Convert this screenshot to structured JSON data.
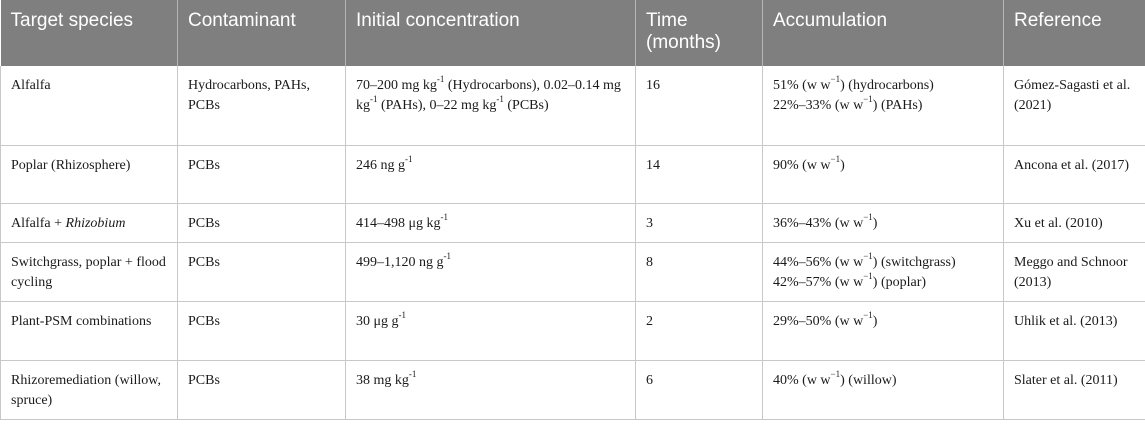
{
  "table": {
    "headers": [
      "Target species",
      "Contaminant",
      "Initial concentration",
      "Time (months)",
      "Accumulation",
      "Reference"
    ],
    "rows": [
      {
        "species": "Alfalfa",
        "contaminant": "Hydrocarbons, PAHs, PCBs",
        "concentration_a": "70–200 mg kg",
        "concentration_a_sup": "-1",
        "concentration_b": " (Hydrocarbons), 0.02–0.14 mg kg",
        "concentration_b_sup": "-1",
        "concentration_c": " (PAHs), 0–22 mg kg",
        "concentration_c_sup": "-1",
        "concentration_d": " (PCBs)",
        "time": "16",
        "accumulation_1a": "51% (w w",
        "accumulation_1_sup": "−1",
        "accumulation_1b": ") (hydrocarbons)",
        "accumulation_2a": "22%–33% (w w",
        "accumulation_2_sup": "−1",
        "accumulation_2b": ") (PAHs)",
        "reference": "Gómez-Sagasti et al. (2021)"
      },
      {
        "species": "Poplar (Rhizosphere)",
        "contaminant": "PCBs",
        "concentration": "246 ng g",
        "concentration_sup": "-1",
        "time": "14",
        "accumulation_a": "90% (w w",
        "accumulation_sup": "−1",
        "accumulation_b": ")",
        "reference": "Ancona et al. (2017)"
      },
      {
        "species_a": "Alfalfa + ",
        "species_b": "Rhizobium",
        "contaminant": "PCBs",
        "concentration": "414–498 μg kg",
        "concentration_sup": "-1",
        "time": "3",
        "accumulation_a": "36%–43% (w w",
        "accumulation_sup": "−1",
        "accumulation_b": ")",
        "reference": "Xu et al. (2010)"
      },
      {
        "species": "Switchgrass, poplar + flood cycling",
        "contaminant": "PCBs",
        "concentration": "499–1,120 ng g",
        "concentration_sup": "-1",
        "time": "8",
        "accumulation_1a": "44%–56% (w w",
        "accumulation_1_sup": "−1",
        "accumulation_1b": ") (switchgrass)",
        "accumulation_2a": "42%–57% (w w",
        "accumulation_2_sup": "−1",
        "accumulation_2b": ") (poplar)",
        "reference": "Meggo and Schnoor (2013)"
      },
      {
        "species": "Plant-PSM combinations",
        "contaminant": "PCBs",
        "concentration": "30 μg g",
        "concentration_sup": "-1",
        "time": "2",
        "accumulation_a": "29%–50% (w w",
        "accumulation_sup": "−1",
        "accumulation_b": ")",
        "reference": "Uhlik et al. (2013)"
      },
      {
        "species": "Rhizoremediation (willow, spruce)",
        "contaminant": "PCBs",
        "concentration": "38 mg kg",
        "concentration_sup": "-1",
        "time": "6",
        "accumulation_a": "40% (w w",
        "accumulation_sup": "−1",
        "accumulation_b": ") (willow)",
        "reference": "Slater et al. (2011)"
      }
    ]
  }
}
